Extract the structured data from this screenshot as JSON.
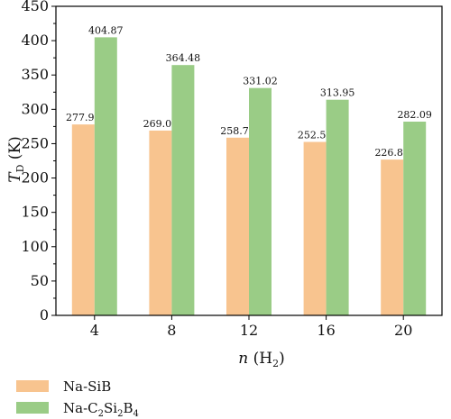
{
  "chart_data": {
    "type": "bar",
    "categories": [
      "4",
      "8",
      "12",
      "16",
      "20"
    ],
    "series": [
      {
        "name": "Na-SiB",
        "name_main": "Na-SiB",
        "name_subs": [],
        "color": "#f8c48f",
        "values": [
          277.97,
          269.08,
          258.75,
          252.56,
          226.81
        ],
        "labels": [
          "277.97",
          "269.08",
          "258.75",
          "252.56",
          "226.81"
        ]
      },
      {
        "name": "Na-C2Si2B4",
        "name_main": "Na-C",
        "name_subs": [
          "2",
          "Si",
          "2",
          "B",
          "4"
        ],
        "color": "#9acc86",
        "values": [
          404.87,
          364.48,
          331.02,
          313.95,
          282.09
        ],
        "labels": [
          "404.87",
          "364.48",
          "331.02",
          "313.95",
          "282.09"
        ]
      }
    ],
    "ylim": [
      0,
      450
    ],
    "yticks": [
      "0",
      "50",
      "100",
      "150",
      "200",
      "250",
      "300",
      "350",
      "400",
      "450"
    ],
    "xlabel": "n (H2)",
    "xlabel_main": "n",
    "xlabel_paren_open": "(H",
    "xlabel_sub": "2",
    "xlabel_paren_close": ")",
    "ylabel": "TD (K)",
    "ylabel_main": "T",
    "ylabel_sub": "D",
    "ylabel_unit": "(K)",
    "legend_position": "bottom-left",
    "grid": false
  }
}
